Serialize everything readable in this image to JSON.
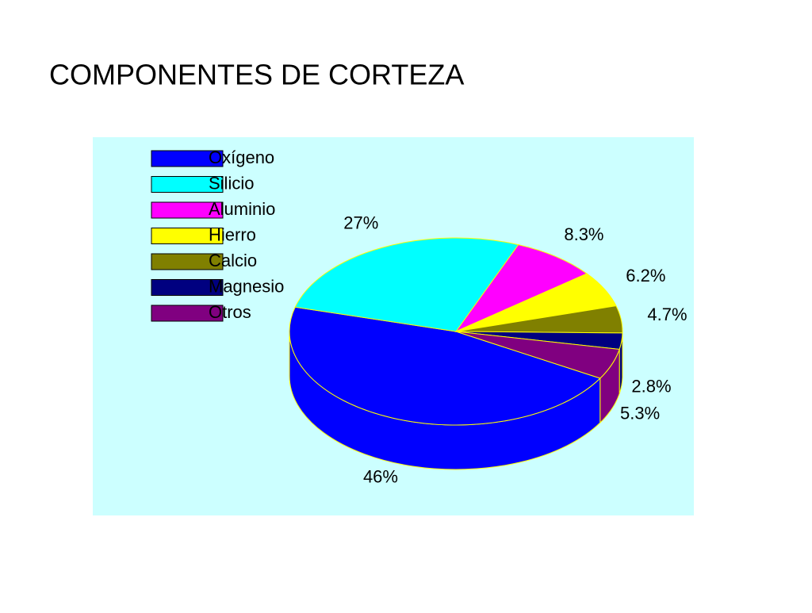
{
  "chart_data": {
    "type": "pie",
    "title": "COMPONENTES DE CORTEZA",
    "categories": [
      "Oxígeno",
      "Silicio",
      "Aluminio",
      "Hierro",
      "Calcio",
      "Magnesio",
      "Otros"
    ],
    "values": [
      46,
      27,
      8.3,
      6.2,
      4.7,
      2.8,
      5.3
    ],
    "value_labels": [
      "46%",
      "27%",
      "8.3%",
      "6.2%",
      "4.7%",
      "2.8%",
      "5.3%"
    ],
    "colors": [
      "#0000ff",
      "#00ffff",
      "#ff00ff",
      "#ffff00",
      "#808000",
      "#000080",
      "#800080"
    ],
    "background": "#ccffff",
    "legend": "upper left"
  }
}
